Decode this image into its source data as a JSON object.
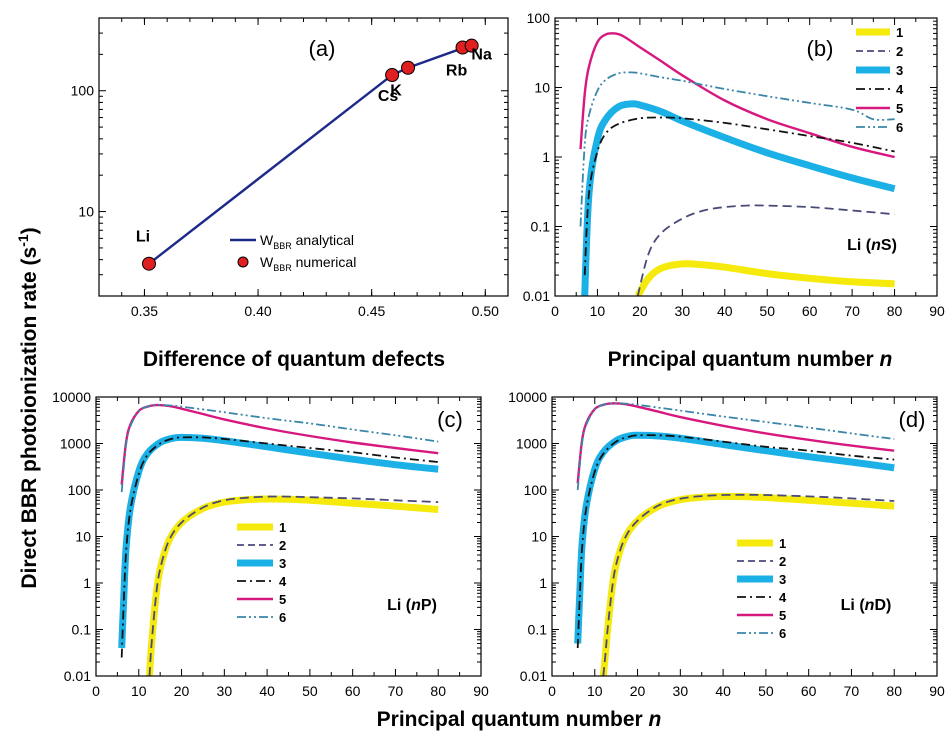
{
  "figure": {
    "ylabel_html": "Direct BBR photoionization rate",
    "ylabel_unit": "(s",
    "ylabel_sup": "-1",
    "ylabel_close": ")"
  },
  "colors": {
    "s1": "#f5ea0b",
    "s2": "#4a4a7a",
    "s3": "#1bb0e6",
    "s4": "#111111",
    "s5": "#d7187f",
    "s6": "#3a86a8",
    "analytical": "#1d2a8a",
    "marker": "#e02020"
  },
  "chart_data": [
    {
      "id": "a",
      "type": "line",
      "tag": "(a)",
      "xlabel": "Difference of quantum defects",
      "xlim": [
        0.33,
        0.51
      ],
      "ylim": [
        2,
        400
      ],
      "yscale": "log",
      "xticks": [
        "0.35",
        "0.40",
        "0.45",
        "0.50"
      ],
      "yticks": [
        "10",
        "100"
      ],
      "analytical": {
        "x": [
          0.352,
          0.459,
          0.466,
          0.49,
          0.494
        ],
        "y": [
          3.7,
          135,
          155,
          225,
          235
        ]
      },
      "numerical": {
        "x": [
          0.352,
          0.459,
          0.466,
          0.49,
          0.494
        ],
        "y": [
          3.7,
          135,
          155,
          228,
          236
        ]
      },
      "atoms": [
        "Li",
        "Cs",
        "K",
        "Rb",
        "Na"
      ],
      "legend": {
        "analytical_main": "W",
        "analytical_sub": "BBR",
        "analytical_rest": " analytical",
        "numerical_main": "W",
        "numerical_sub": "BBR",
        "numerical_rest": " numerical"
      }
    },
    {
      "id": "b",
      "type": "line",
      "tag": "(b)",
      "xlabel_main": "Principal quantum number ",
      "xlabel_var": "n",
      "annot_pre": "Li (",
      "annot_var": "n",
      "annot_post": "S)",
      "xlim": [
        0,
        90
      ],
      "ylim": [
        0.01,
        100
      ],
      "yscale": "log",
      "xticks": [
        "0",
        "10",
        "20",
        "30",
        "40",
        "50",
        "60",
        "70",
        "80",
        "90"
      ],
      "yticks": [
        "0.01",
        "0.1",
        "1",
        "10",
        "100"
      ],
      "legend_labels": [
        "1",
        "2",
        "3",
        "4",
        "5",
        "6"
      ],
      "series": [
        {
          "name": "1",
          "x": [
            19.5,
            22,
            25,
            30,
            35,
            40,
            50,
            60,
            70,
            80
          ],
          "y": [
            0.01,
            0.018,
            0.025,
            0.029,
            0.028,
            0.026,
            0.021,
            0.018,
            0.016,
            0.015
          ]
        },
        {
          "name": "2",
          "x": [
            19.5,
            22,
            25,
            30,
            35,
            40,
            45,
            50,
            60,
            70,
            80
          ],
          "y": [
            0.01,
            0.04,
            0.08,
            0.13,
            0.17,
            0.19,
            0.2,
            0.2,
            0.19,
            0.17,
            0.15
          ]
        },
        {
          "name": "3",
          "x": [
            7,
            8,
            10,
            12,
            15,
            18,
            20,
            25,
            30,
            40,
            50,
            60,
            70,
            80
          ],
          "y": [
            0.01,
            0.3,
            1.8,
            3.5,
            5.3,
            5.8,
            5.6,
            4.5,
            3.3,
            1.9,
            1.15,
            0.75,
            0.5,
            0.35
          ]
        },
        {
          "name": "4",
          "x": [
            7,
            8,
            10,
            12,
            15,
            20,
            25,
            30,
            40,
            50,
            60,
            70,
            80
          ],
          "y": [
            0.02,
            0.3,
            1.2,
            2.2,
            3.0,
            3.6,
            3.7,
            3.6,
            3.1,
            2.5,
            2.0,
            1.6,
            1.2
          ]
        },
        {
          "name": "5",
          "x": [
            6,
            7,
            8,
            10,
            12,
            14,
            16,
            20,
            25,
            30,
            40,
            50,
            60,
            70,
            80
          ],
          "y": [
            1.3,
            8,
            20,
            45,
            58,
            60,
            55,
            38,
            24,
            15,
            6.5,
            3.5,
            2.2,
            1.4,
            1.0
          ]
        },
        {
          "name": "6",
          "x": [
            6,
            7,
            8,
            10,
            12,
            15,
            18,
            20,
            25,
            30,
            40,
            50,
            60,
            70,
            75,
            80
          ],
          "y": [
            0.1,
            1.5,
            4,
            9,
            13,
            16,
            16.5,
            16,
            14,
            12.5,
            9.5,
            7.5,
            6,
            4.8,
            3.5,
            3.5
          ]
        }
      ]
    },
    {
      "id": "c",
      "type": "line",
      "tag": "(c)",
      "annot_pre": "Li (",
      "annot_var": "n",
      "annot_post": "P)",
      "xlim": [
        0,
        90
      ],
      "ylim": [
        0.01,
        10000
      ],
      "yscale": "log",
      "xticks": [
        "0",
        "10",
        "20",
        "30",
        "40",
        "50",
        "60",
        "70",
        "80",
        "90"
      ],
      "yticks": [
        "0.01",
        "0.1",
        "1",
        "10",
        "100",
        "1000",
        "10000"
      ],
      "legend_labels": [
        "1",
        "2",
        "3",
        "4",
        "5",
        "6"
      ],
      "series": [
        {
          "name": "1",
          "x": [
            12.5,
            13,
            14,
            15,
            17,
            20,
            25,
            30,
            35,
            40,
            45,
            50,
            60,
            70,
            80
          ],
          "y": [
            0.01,
            0.05,
            0.5,
            2,
            8,
            20,
            40,
            55,
            62,
            64,
            63,
            60,
            52,
            45,
            38
          ]
        },
        {
          "name": "2",
          "x": [
            12.5,
            13,
            14,
            15,
            17,
            20,
            25,
            30,
            35,
            40,
            45,
            50,
            60,
            70,
            80
          ],
          "y": [
            0.01,
            0.05,
            0.5,
            2,
            8,
            20,
            42,
            60,
            68,
            72,
            72,
            70,
            66,
            60,
            55
          ]
        },
        {
          "name": "3",
          "x": [
            6,
            6.5,
            7,
            8,
            10,
            12,
            15,
            18,
            20,
            25,
            30,
            40,
            50,
            60,
            70,
            80
          ],
          "y": [
            0.04,
            0.5,
            5,
            40,
            250,
            600,
            1050,
            1300,
            1350,
            1300,
            1150,
            850,
            620,
            460,
            350,
            280
          ]
        },
        {
          "name": "4",
          "x": [
            6,
            6.5,
            7,
            8,
            10,
            12,
            15,
            18,
            20,
            25,
            30,
            40,
            50,
            60,
            70,
            80
          ],
          "y": [
            0.025,
            0.4,
            4,
            35,
            220,
            560,
            1000,
            1280,
            1350,
            1350,
            1250,
            1000,
            800,
            650,
            500,
            400
          ]
        },
        {
          "name": "5",
          "x": [
            6,
            7,
            8,
            10,
            12,
            14,
            16,
            18,
            20,
            25,
            30,
            40,
            50,
            60,
            70,
            80
          ],
          "y": [
            130,
            1000,
            2500,
            5000,
            6200,
            6700,
            6600,
            6200,
            5600,
            4300,
            3300,
            2100,
            1450,
            1050,
            800,
            620
          ]
        },
        {
          "name": "6",
          "x": [
            6,
            7,
            8,
            10,
            12,
            14,
            16,
            18,
            20,
            25,
            30,
            40,
            50,
            60,
            70,
            80
          ],
          "y": [
            90,
            900,
            2300,
            5000,
            6200,
            6700,
            6700,
            6500,
            6200,
            5400,
            4700,
            3500,
            2700,
            2000,
            1500,
            1100
          ]
        }
      ]
    },
    {
      "id": "d",
      "type": "line",
      "tag": "(d)",
      "annot_pre": "Li (",
      "annot_var": "n",
      "annot_post": "D)",
      "xlim": [
        0,
        90
      ],
      "ylim": [
        0.01,
        10000
      ],
      "yscale": "log",
      "xticks": [
        "0",
        "10",
        "20",
        "30",
        "40",
        "50",
        "60",
        "70",
        "80",
        "90"
      ],
      "yticks": [
        "0.01",
        "0.1",
        "1",
        "10",
        "100",
        "1000",
        "10000"
      ],
      "legend_labels": [
        "1",
        "2",
        "3",
        "4",
        "5",
        "6"
      ],
      "series": [
        {
          "name": "1",
          "x": [
            12,
            12.5,
            13,
            14,
            15,
            17,
            20,
            25,
            30,
            35,
            40,
            45,
            50,
            60,
            70,
            80
          ],
          "y": [
            0.01,
            0.03,
            0.1,
            0.7,
            2.5,
            9,
            22,
            45,
            62,
            70,
            73,
            72,
            69,
            60,
            52,
            45
          ]
        },
        {
          "name": "2",
          "x": [
            12,
            12.5,
            13,
            14,
            15,
            17,
            20,
            25,
            30,
            35,
            40,
            45,
            50,
            60,
            70,
            80
          ],
          "y": [
            0.01,
            0.03,
            0.1,
            0.7,
            2.5,
            9,
            22,
            47,
            65,
            74,
            78,
            79,
            78,
            73,
            66,
            58
          ]
        },
        {
          "name": "3",
          "x": [
            6,
            6.5,
            7,
            8,
            10,
            12,
            15,
            18,
            20,
            25,
            30,
            40,
            50,
            60,
            70,
            80
          ],
          "y": [
            0.05,
            0.6,
            6,
            45,
            280,
            650,
            1150,
            1450,
            1500,
            1450,
            1300,
            950,
            700,
            520,
            400,
            300
          ]
        },
        {
          "name": "4",
          "x": [
            6,
            6.5,
            7,
            8,
            10,
            12,
            15,
            18,
            20,
            25,
            30,
            40,
            50,
            60,
            70,
            80
          ],
          "y": [
            0.04,
            0.5,
            5,
            40,
            250,
            600,
            1100,
            1400,
            1500,
            1500,
            1400,
            1100,
            850,
            700,
            550,
            450
          ]
        },
        {
          "name": "5",
          "x": [
            6,
            7,
            8,
            10,
            12,
            14,
            16,
            18,
            20,
            25,
            30,
            40,
            50,
            60,
            70,
            80
          ],
          "y": [
            140,
            1100,
            2700,
            5500,
            6800,
            7300,
            7200,
            6800,
            6200,
            4800,
            3700,
            2400,
            1650,
            1200,
            900,
            700
          ]
        },
        {
          "name": "6",
          "x": [
            6,
            7,
            8,
            10,
            12,
            14,
            16,
            18,
            20,
            25,
            30,
            40,
            50,
            60,
            70,
            80
          ],
          "y": [
            100,
            1000,
            2500,
            5400,
            6800,
            7300,
            7300,
            7100,
            6800,
            5900,
            5100,
            3800,
            2900,
            2200,
            1650,
            1250
          ]
        }
      ]
    }
  ]
}
